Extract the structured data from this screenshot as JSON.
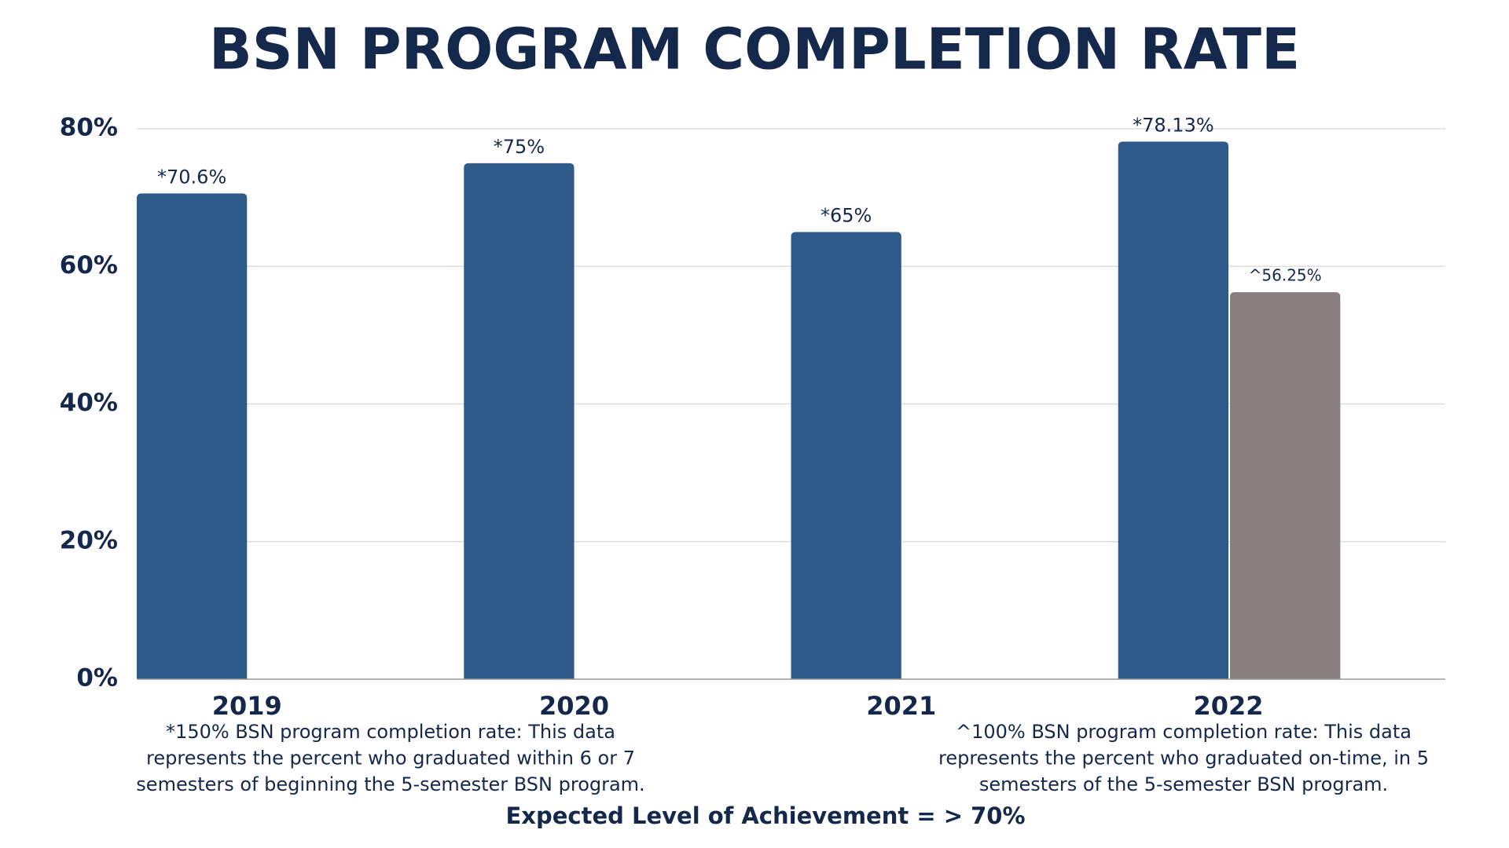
{
  "chart_data": {
    "type": "bar",
    "title": "BSN PROGRAM COMPLETION RATE",
    "categories": [
      "2019",
      "2020",
      "2021",
      "2022"
    ],
    "series": [
      {
        "color": "#2e5a8a",
        "values": [
          70.6,
          75,
          65,
          78.13
        ],
        "value_labels": [
          "*70.6%",
          "*75%",
          "*65%",
          "*78.13%"
        ]
      },
      {
        "color": "#8a7f80",
        "values": [
          null,
          null,
          null,
          56.25
        ],
        "value_labels": [
          null,
          null,
          null,
          "^56.25%"
        ]
      }
    ],
    "ylim": [
      0,
      80
    ],
    "yticks": [
      {
        "value": 0,
        "label": "0%"
      },
      {
        "value": 20,
        "label": "20%"
      },
      {
        "value": 40,
        "label": "40%"
      },
      {
        "value": 60,
        "label": "60%"
      },
      {
        "value": 80,
        "label": "80%"
      }
    ],
    "grid": true,
    "notes": [
      [
        "*150% BSN program completion rate: This data",
        "represents the percent who graduated within 6 or 7",
        "semesters of beginning the 5-semester BSN program."
      ],
      [
        "^100% BSN program completion rate: This data",
        "represents the percent who graduated on-time, in 5",
        "semesters of the 5-semester BSN program."
      ]
    ],
    "footer": "Expected Level of Achievement = > 70%"
  }
}
